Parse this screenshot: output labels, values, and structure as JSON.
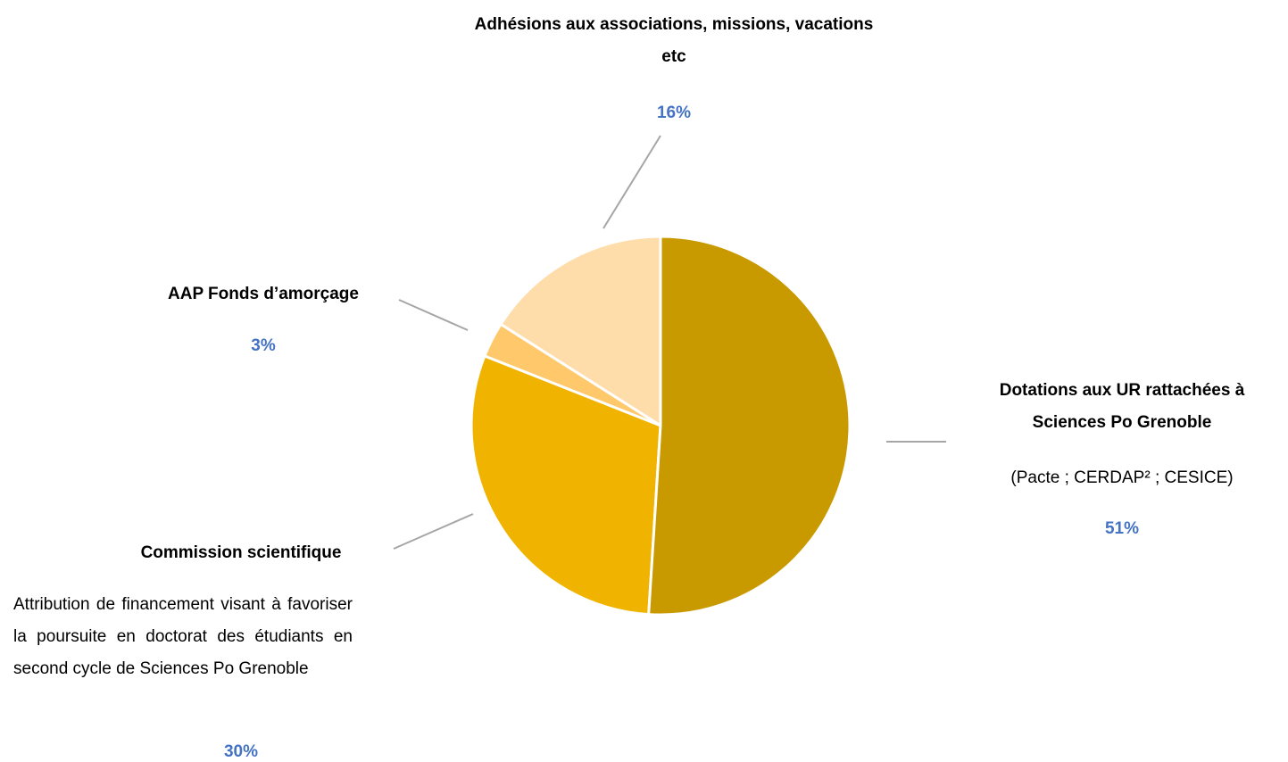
{
  "chart_data": {
    "type": "pie",
    "categories": [
      "Dotations aux UR rattachées à Sciences Po Grenoble",
      "Commission scientifique",
      "AAP Fonds d’amorçage",
      "Adhésions aux associations, missions, vacations etc"
    ],
    "descriptions": [
      "(Pacte ; CERDAP² ; CESICE)",
      "Attribution de financement visant à favoriser la poursuite en doctorat des étudiants en second cycle de Sciences Po Grenoble",
      null,
      null
    ],
    "values": [
      51,
      30,
      3,
      16
    ],
    "value_labels": [
      "51%",
      "30%",
      "3%",
      "16%"
    ],
    "colors": [
      "#c99a00",
      "#efb300",
      "#ffc96b",
      "#ffddaa"
    ]
  }
}
